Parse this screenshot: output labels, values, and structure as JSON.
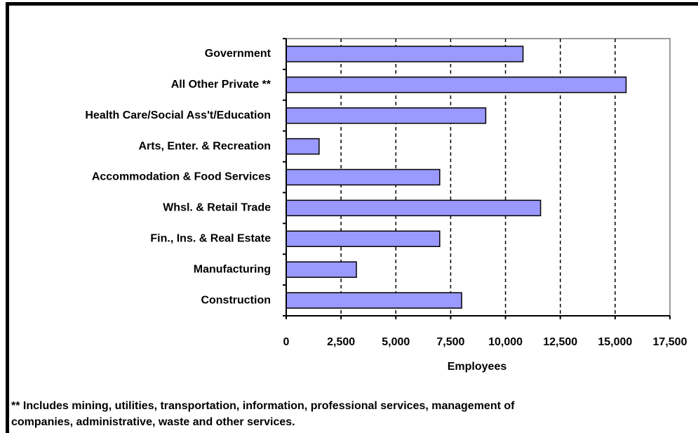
{
  "chart_data": {
    "type": "barh",
    "categories": [
      "Government",
      "All Other Private  **",
      "Health Care/Social Ass't/Education",
      "Arts, Enter. & Recreation",
      "Accommodation & Food Services",
      "Whsl. & Retail Trade",
      "Fin., Ins. & Real Estate",
      "Manufacturing",
      "Construction"
    ],
    "values": [
      10800,
      15500,
      9100,
      1500,
      7000,
      11600,
      7000,
      3200,
      8000
    ],
    "color": "#9999ff",
    "xlabel": "Employees",
    "xlim": [
      0,
      17500
    ],
    "xticks": [
      0,
      {
        "value": 2500,
        "label": "2,500"
      },
      {
        "value": 5000,
        "label": "5,000"
      },
      {
        "value": 7500,
        "label": "7,500"
      },
      {
        "value": 10000,
        "label": "10,000"
      },
      {
        "value": 12500,
        "label": "12,500"
      },
      {
        "value": 15000,
        "label": "15,000"
      },
      {
        "value": 17500,
        "label": "17,500"
      }
    ],
    "grid": true,
    "footnote": [
      "** Includes mining, utilities, transportation, information, professional services, management of",
      "companies, administrative, waste and other services."
    ]
  }
}
